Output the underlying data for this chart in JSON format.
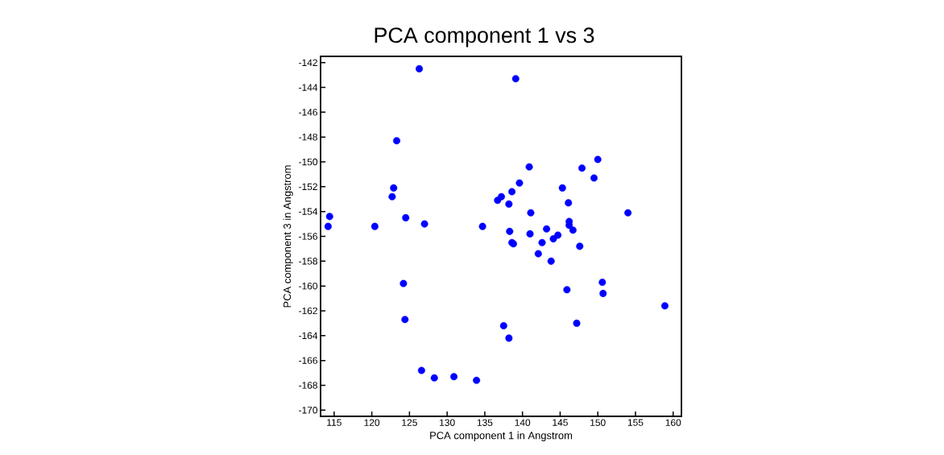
{
  "chart_data": {
    "type": "scatter",
    "title": "PCA component 1 vs 3",
    "xlabel": "PCA component 1 in Angstrom",
    "ylabel": "PCA component 3 in Angstrom",
    "x": [
      114.2,
      114.4,
      120.4,
      123.3,
      122.9,
      122.7,
      124.5,
      127.0,
      126.3,
      134.7,
      124.2,
      124.4,
      126.6,
      128.3,
      130.9,
      133.9,
      139.1,
      140.9,
      139.6,
      138.6,
      137.2,
      136.7,
      138.2,
      141.1,
      145.3,
      146.1,
      147.9,
      150.0,
      149.5,
      154.0,
      146.2,
      146.2,
      146.7,
      143.2,
      138.3,
      141.0,
      144.7,
      144.1,
      142.6,
      138.6,
      138.8,
      147.6,
      142.1,
      143.8,
      150.6,
      150.7,
      145.9,
      158.9,
      147.2,
      137.5,
      138.2
    ],
    "values": [
      -155.2,
      -154.4,
      -155.2,
      -148.3,
      -152.1,
      -152.8,
      -154.5,
      -155.0,
      -142.5,
      -155.2,
      -159.8,
      -162.7,
      -166.8,
      -167.4,
      -167.3,
      -167.6,
      -143.3,
      -150.4,
      -151.7,
      -152.4,
      -152.8,
      -153.1,
      -153.4,
      -154.1,
      -152.1,
      -153.3,
      -150.5,
      -149.8,
      -151.3,
      -154.1,
      -154.8,
      -155.1,
      -155.5,
      -155.4,
      -155.6,
      -155.8,
      -155.9,
      -156.2,
      -156.5,
      -156.5,
      -156.6,
      -156.8,
      -157.4,
      -158.0,
      -159.7,
      -160.6,
      -160.3,
      -161.6,
      -163.0,
      -163.2,
      -164.2
    ],
    "color": "#0000ff",
    "marker": "circle",
    "xlim": [
      113.2,
      161.1
    ],
    "ylim": [
      -170.5,
      -141.5
    ],
    "xticks": [
      115,
      120,
      125,
      130,
      135,
      140,
      145,
      150,
      155,
      160
    ],
    "yticks": [
      -170,
      -168,
      -166,
      -164,
      -162,
      -160,
      -158,
      -156,
      -154,
      -152,
      -150,
      -148,
      -146,
      -144,
      -142
    ]
  }
}
